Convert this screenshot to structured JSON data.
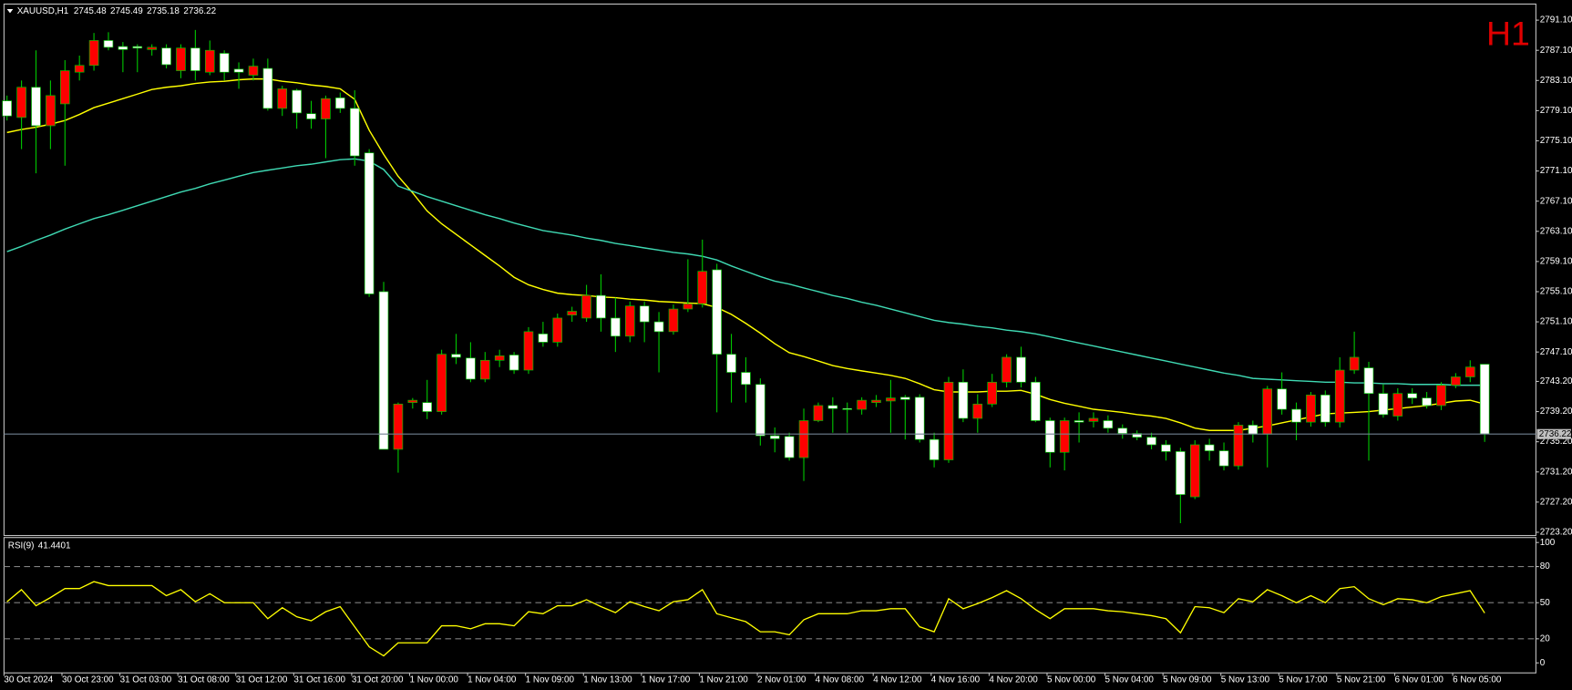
{
  "chart_data": [
    {
      "type": "candlestick",
      "title": "XAUUSD,H1",
      "timeframe_label": "H1",
      "categories": [
        "30 Oct 2024",
        null,
        null,
        null,
        "30 Oct 23:00",
        null,
        null,
        null,
        "31 Oct 03:00",
        null,
        null,
        null,
        "31 Oct 08:00",
        null,
        null,
        null,
        "31 Oct 12:00",
        null,
        null,
        null,
        "31 Oct 16:00",
        null,
        null,
        null,
        "31 Oct 20:00",
        null,
        null,
        null,
        "1 Nov 00:00",
        null,
        null,
        null,
        "1 Nov 04:00",
        null,
        null,
        null,
        "1 Nov 09:00",
        null,
        null,
        null,
        "1 Nov 13:00",
        null,
        null,
        null,
        "1 Nov 17:00",
        null,
        null,
        null,
        "1 Nov 21:00",
        null,
        null,
        null,
        "2 Nov 01:00",
        null,
        null,
        null,
        "4 Nov 08:00",
        null,
        null,
        null,
        "4 Nov 12:00",
        null,
        null,
        null,
        "4 Nov 16:00",
        null,
        null,
        null,
        "4 Nov 20:00",
        null,
        null,
        null,
        "5 Nov 00:00",
        null,
        null,
        null,
        "5 Nov 04:00",
        null,
        null,
        null,
        "5 Nov 09:00",
        null,
        null,
        null,
        "5 Nov 13:00",
        null,
        null,
        null,
        "5 Nov 17:00",
        null,
        null,
        null,
        "5 Nov 21:00",
        null,
        null,
        null,
        "6 Nov 01:00",
        null,
        null,
        null,
        "6 Nov 05:00",
        null,
        null
      ],
      "open": [
        2780.4,
        2778.2,
        2782.2,
        2777.1,
        2780.0,
        2784.2,
        2785.1,
        2788.4,
        2787.6,
        2787.6,
        2787.2,
        2787.4,
        2784.4,
        2787.4,
        2784.2,
        2786.7,
        2784.6,
        2783.8,
        2784.7,
        2779.4,
        2781.8,
        2778.7,
        2778.0,
        2780.8,
        2779.4,
        2773.5,
        2755.1,
        2734.2,
        2740.4,
        2740.4,
        2739.2,
        2746.8,
        2746.3,
        2743.5,
        2746.0,
        2746.7,
        2744.7,
        2749.5,
        2748.4,
        2752.0,
        2751.6,
        2754.6,
        2751.6,
        2749.2,
        2753.2,
        2751.1,
        2749.8,
        2752.8,
        2753.5,
        2758.0,
        2746.8,
        2744.4,
        2742.8,
        2736.0,
        2735.9,
        2733.1,
        2738.0,
        2740.0,
        2739.6,
        2739.5,
        2740.4,
        2740.6,
        2741.1,
        2741.1,
        2735.5,
        2732.8,
        2743.1,
        2738.3,
        2740.2,
        2743.1,
        2746.4,
        2743.1,
        2738.0,
        2733.8,
        2738.0,
        2737.9,
        2738.0,
        2737.0,
        2736.3,
        2735.8,
        2734.8,
        2733.9,
        2727.9,
        2734.8,
        2734.0,
        2732.0,
        2737.4,
        2736.2,
        2742.2,
        2739.5,
        2737.8,
        2741.4,
        2737.8,
        2744.7,
        2745.0,
        2741.6,
        2738.6,
        2741.6,
        2741.0,
        2740.0,
        2742.7,
        2743.8,
        2745.48
      ],
      "high": [
        2781.1,
        2783.1,
        2787.1,
        2783.1,
        2785.8,
        2786.4,
        2789.4,
        2789.5,
        2788.2,
        2787.9,
        2787.9,
        2787.9,
        2787.9,
        2789.8,
        2788.4,
        2787.1,
        2785.5,
        2786.0,
        2786.0,
        2782.4,
        2782.0,
        2780.4,
        2781.1,
        2781.5,
        2781.8,
        2774.0,
        2756.4,
        2740.4,
        2741.0,
        2743.4,
        2747.4,
        2749.5,
        2748.4,
        2747.1,
        2747.4,
        2747.1,
        2750.4,
        2751.1,
        2752.2,
        2753.1,
        2756.0,
        2757.4,
        2754.3,
        2753.8,
        2753.8,
        2752.4,
        2753.4,
        2759.4,
        2762.0,
        2758.8,
        2749.5,
        2746.4,
        2743.6,
        2737.1,
        2736.4,
        2739.6,
        2740.4,
        2741.1,
        2740.4,
        2741.1,
        2741.4,
        2743.4,
        2741.4,
        2741.5,
        2736.4,
        2743.8,
        2744.8,
        2741.5,
        2744.2,
        2746.8,
        2747.8,
        2743.8,
        2738.4,
        2738.4,
        2739.1,
        2739.1,
        2738.7,
        2737.5,
        2736.7,
        2736.4,
        2735.4,
        2734.4,
        2735.4,
        2735.6,
        2735.1,
        2737.8,
        2738.0,
        2742.6,
        2744.4,
        2740.4,
        2741.8,
        2742.0,
        2746.4,
        2749.8,
        2745.8,
        2742.8,
        2742.3,
        2742.3,
        2741.8,
        2743.1,
        2744.3,
        2746.0,
        2745.49
      ],
      "low": [
        2777.8,
        2774.0,
        2770.8,
        2774.0,
        2771.8,
        2783.1,
        2784.4,
        2787.1,
        2784.2,
        2784.2,
        2786.4,
        2784.7,
        2783.4,
        2783.1,
        2783.8,
        2783.1,
        2782.0,
        2783.1,
        2779.1,
        2778.4,
        2776.7,
        2776.7,
        2772.8,
        2778.8,
        2771.8,
        2754.4,
        2734.2,
        2731.1,
        2739.6,
        2738.2,
        2738.8,
        2745.5,
        2743.1,
        2743.1,
        2745.1,
        2744.2,
        2744.2,
        2747.8,
        2747.8,
        2751.1,
        2751.1,
        2749.8,
        2747.1,
        2748.4,
        2748.4,
        2744.4,
        2749.4,
        2752.4,
        2753.0,
        2739.1,
        2740.4,
        2740.4,
        2734.7,
        2733.8,
        2732.7,
        2730.0,
        2737.8,
        2736.4,
        2736.4,
        2738.8,
        2739.8,
        2736.4,
        2735.5,
        2735.1,
        2731.8,
        2732.4,
        2737.8,
        2736.4,
        2739.8,
        2742.4,
        2742.4,
        2737.8,
        2731.8,
        2731.4,
        2735.1,
        2737.1,
        2736.4,
        2735.6,
        2735.4,
        2734.2,
        2732.7,
        2724.4,
        2727.6,
        2732.7,
        2731.4,
        2731.5,
        2735.1,
        2731.8,
        2738.8,
        2735.4,
        2737.2,
        2737.2,
        2737.1,
        2744.2,
        2732.7,
        2738.4,
        2738.0,
        2740.2,
        2739.6,
        2739.4,
        2742.3,
        2743.1,
        2735.18
      ],
      "close": [
        2778.4,
        2782.2,
        2777.1,
        2781.1,
        2784.4,
        2785.1,
        2788.4,
        2787.5,
        2787.2,
        2787.4,
        2787.5,
        2785.2,
        2787.4,
        2784.4,
        2787.1,
        2784.2,
        2784.2,
        2785.0,
        2779.4,
        2782.0,
        2778.8,
        2778.0,
        2780.7,
        2779.4,
        2773.1,
        2754.8,
        2734.2,
        2740.2,
        2740.7,
        2739.2,
        2746.8,
        2746.4,
        2743.5,
        2746.0,
        2746.6,
        2744.7,
        2749.8,
        2748.4,
        2751.6,
        2752.5,
        2754.6,
        2751.6,
        2749.2,
        2753.2,
        2751.1,
        2749.8,
        2752.8,
        2753.5,
        2757.8,
        2746.8,
        2744.4,
        2742.8,
        2736.0,
        2735.6,
        2733.1,
        2738.0,
        2740.0,
        2739.6,
        2739.5,
        2740.7,
        2740.7,
        2741.0,
        2740.8,
        2735.5,
        2732.8,
        2743.1,
        2738.3,
        2740.2,
        2743.1,
        2746.4,
        2743.1,
        2738.0,
        2733.8,
        2738.0,
        2737.8,
        2738.3,
        2737.0,
        2736.3,
        2735.8,
        2734.8,
        2733.9,
        2728.2,
        2734.8,
        2734.0,
        2732.0,
        2737.4,
        2736.2,
        2742.2,
        2739.5,
        2737.8,
        2741.4,
        2737.8,
        2744.7,
        2746.4,
        2741.6,
        2738.8,
        2741.6,
        2741.0,
        2740.0,
        2742.7,
        2743.8,
        2745.1,
        2736.22
      ],
      "ma_lines": [
        {
          "color": "#ffff00",
          "values": [
            2776.2,
            2776.6,
            2776.9,
            2777.3,
            2777.8,
            2778.6,
            2779.5,
            2780.1,
            2780.7,
            2781.3,
            2781.9,
            2782.2,
            2782.4,
            2782.7,
            2782.9,
            2783.0,
            2783.2,
            2783.3,
            2783.3,
            2783.0,
            2782.8,
            2782.5,
            2782.3,
            2782.0,
            2780.6,
            2776.5,
            2773.3,
            2770.4,
            2768.2,
            2765.8,
            2764.1,
            2762.7,
            2761.3,
            2759.9,
            2758.5,
            2757.0,
            2756.0,
            2755.4,
            2754.9,
            2754.7,
            2754.6,
            2754.4,
            2754.3,
            2754.1,
            2754.0,
            2753.8,
            2753.7,
            2753.6,
            2753.5,
            2753.0,
            2752.1,
            2750.9,
            2749.6,
            2748.2,
            2747.0,
            2746.5,
            2745.9,
            2745.3,
            2744.9,
            2744.6,
            2744.3,
            2744.0,
            2743.6,
            2742.9,
            2742.1,
            2741.8,
            2741.8,
            2741.8,
            2741.9,
            2741.9,
            2742.0,
            2741.5,
            2740.8,
            2740.3,
            2739.9,
            2739.5,
            2739.3,
            2739.1,
            2738.8,
            2738.6,
            2738.3,
            2737.7,
            2737.0,
            2736.7,
            2736.7,
            2736.7,
            2737.0,
            2737.3,
            2737.7,
            2738.1,
            2738.5,
            2738.9,
            2739.0,
            2739.1,
            2739.2,
            2739.4,
            2739.6,
            2739.8,
            2740.0,
            2740.3,
            2740.6,
            2740.7,
            2740.2
          ]
        },
        {
          "color": "#3fd9b3",
          "values": [
            2760.4,
            2761.1,
            2761.9,
            2762.6,
            2763.4,
            2764.1,
            2764.8,
            2765.3,
            2765.9,
            2766.5,
            2767.1,
            2767.7,
            2768.3,
            2768.8,
            2769.4,
            2769.9,
            2770.4,
            2770.9,
            2771.2,
            2771.5,
            2771.8,
            2772.0,
            2772.3,
            2772.6,
            2772.7,
            2772.4,
            2771.3,
            2769.1,
            2768.4,
            2767.7,
            2767.1,
            2766.5,
            2765.9,
            2765.3,
            2764.8,
            2764.2,
            2763.7,
            2763.2,
            2762.9,
            2762.6,
            2762.2,
            2761.9,
            2761.5,
            2761.2,
            2760.9,
            2760.6,
            2760.3,
            2760.1,
            2759.8,
            2759.3,
            2758.5,
            2757.8,
            2757.1,
            2756.5,
            2756.1,
            2755.6,
            2755.1,
            2754.6,
            2754.2,
            2753.7,
            2753.3,
            2752.8,
            2752.3,
            2751.8,
            2751.3,
            2751.0,
            2750.8,
            2750.5,
            2750.3,
            2750.0,
            2749.8,
            2749.5,
            2749.1,
            2748.7,
            2748.3,
            2747.9,
            2747.5,
            2747.1,
            2746.7,
            2746.3,
            2745.9,
            2745.5,
            2745.1,
            2744.7,
            2744.3,
            2744.0,
            2743.6,
            2743.5,
            2743.4,
            2743.3,
            2743.2,
            2743.1,
            2743.1,
            2743.0,
            2743.0,
            2742.9,
            2742.9,
            2742.8,
            2742.8,
            2742.8,
            2742.7,
            2742.7,
            2742.7
          ]
        }
      ],
      "up_color": "#ff0000",
      "down_color": "#ffffff",
      "wick_color": "#00c800",
      "price_line_color": "#708090",
      "ylim": [
        2722.9,
        2793.1
      ],
      "yticks": [
        {
          "value": 2791.1,
          "label": "2791.10"
        },
        {
          "value": 2787.1,
          "label": "2787.10"
        },
        {
          "value": 2783.1,
          "label": "2783.10"
        },
        {
          "value": 2779.1,
          "label": "2779.10"
        },
        {
          "value": 2775.1,
          "label": "2775.10"
        },
        {
          "value": 2771.1,
          "label": "2771.10"
        },
        {
          "value": 2767.1,
          "label": "2767.10"
        },
        {
          "value": 2763.1,
          "label": "2763.10"
        },
        {
          "value": 2759.1,
          "label": "2759.10"
        },
        {
          "value": 2755.1,
          "label": "2755.10"
        },
        {
          "value": 2751.1,
          "label": "2751.10"
        },
        {
          "value": 2747.1,
          "label": "2747.10"
        },
        {
          "value": 2743.2,
          "label": "2743.20"
        },
        {
          "value": 2739.2,
          "label": "2739.20"
        },
        {
          "value": 2735.2,
          "label": "2735.20"
        },
        {
          "value": 2731.2,
          "label": "2731.20"
        },
        {
          "value": 2727.2,
          "label": "2727.20"
        },
        {
          "value": 2723.2,
          "label": "2723.20"
        }
      ]
    },
    {
      "type": "line",
      "title": "RSI(9)",
      "color": "#ffff00",
      "values": [
        50.8,
        60.8,
        47.5,
        54.2,
        61.7,
        61.7,
        67.5,
        64.2,
        64.2,
        64.2,
        64.2,
        55.8,
        60.8,
        50.8,
        57.5,
        50.0,
        50.0,
        50.0,
        36.7,
        45.8,
        38.3,
        35.0,
        42.5,
        46.7,
        30.0,
        13.3,
        5.8,
        16.7,
        16.7,
        16.7,
        30.8,
        30.8,
        28.3,
        32.5,
        32.5,
        30.8,
        42.5,
        40.8,
        47.5,
        47.5,
        52.5,
        46.7,
        41.7,
        50.8,
        46.7,
        43.3,
        50.8,
        52.5,
        60.8,
        40.8,
        37.5,
        34.2,
        25.8,
        25.8,
        23.3,
        35.8,
        40.8,
        40.8,
        40.8,
        43.3,
        43.3,
        45.0,
        45.0,
        30.0,
        25.8,
        53.3,
        45.0,
        49.2,
        54.2,
        60.0,
        53.3,
        44.2,
        36.7,
        45.0,
        45.0,
        45.0,
        43.3,
        42.5,
        40.8,
        39.2,
        36.7,
        25.0,
        46.7,
        45.8,
        41.7,
        53.3,
        50.8,
        60.8,
        55.8,
        50.0,
        55.8,
        50.0,
        61.7,
        63.3,
        53.3,
        48.3,
        53.3,
        52.5,
        50.0,
        55.0,
        57.5,
        60.0,
        41.4401
      ],
      "ylim": [
        -7.5,
        103.3
      ],
      "yticks": [
        100,
        80,
        50,
        20,
        0
      ],
      "levels": [
        80,
        50,
        20
      ],
      "level_color": "#808080"
    }
  ]
}
